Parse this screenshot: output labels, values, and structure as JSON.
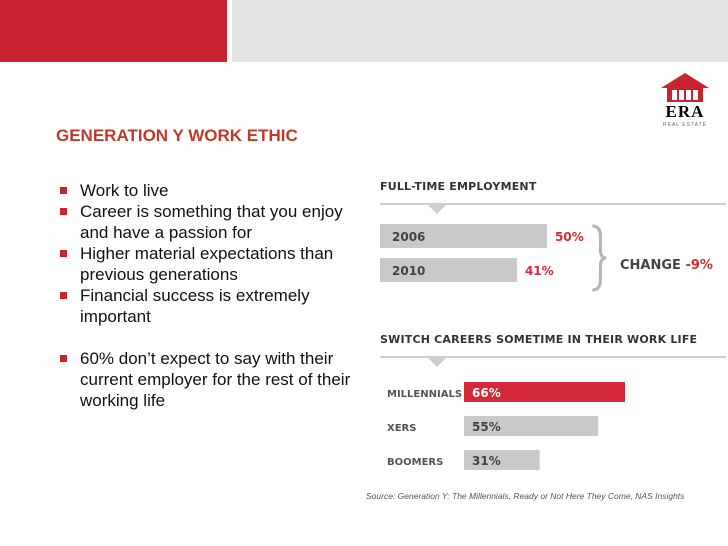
{
  "colors": {
    "accent": "#c8232f",
    "bar_gray": "#c9c9c9",
    "bar_red": "#d42a38",
    "title_red": "#c0392b",
    "header_gray": "#e3e3e3"
  },
  "logo": {
    "name": "ERA",
    "tagline": "REAL ESTATE"
  },
  "slide": {
    "title": "GENERATION Y WORK ETHIC",
    "bullets": [
      "Work to live",
      "Career is something that you enjoy and have a passion for",
      "Higher material expectations than previous generations",
      "Financial success is extremely important",
      "60% don’t expect to say with their current employer for the rest of their working life"
    ]
  },
  "source": "Source: Generation Y: The Millennials, Ready or Not Here They Come, NAS Insights",
  "change": {
    "label": "CHANGE",
    "value": "-9%"
  },
  "chart_data": [
    {
      "type": "bar",
      "title": "FULL-TIME EMPLOYMENT",
      "orientation": "horizontal",
      "categories": [
        "2006",
        "2010"
      ],
      "values": [
        50,
        41
      ],
      "unit": "%",
      "value_labels": [
        "50%",
        "41%"
      ],
      "highlight": [
        false,
        false
      ],
      "xlim": [
        0,
        60
      ]
    },
    {
      "type": "bar",
      "title": "SWITCH CAREERS SOMETIME IN THEIR WORK LIFE",
      "orientation": "horizontal",
      "categories": [
        "MILLENNIALS",
        "XERS",
        "BOOMERS"
      ],
      "values": [
        66,
        55,
        31
      ],
      "unit": "%",
      "value_labels": [
        "66%",
        "55%",
        "31%"
      ],
      "highlight": [
        true,
        false,
        false
      ],
      "xlim": [
        0,
        100
      ]
    }
  ]
}
